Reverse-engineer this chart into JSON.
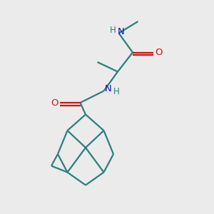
{
  "background_color": "#ebebeb",
  "bond_color": "#2d7d7d",
  "nitrogen_color": "#1414cc",
  "oxygen_color": "#cc1414",
  "line_width": 1.6,
  "figsize": [
    3.0,
    3.0
  ],
  "dpi": 100,
  "xlim": [
    0,
    10
  ],
  "ylim": [
    0,
    10
  ]
}
